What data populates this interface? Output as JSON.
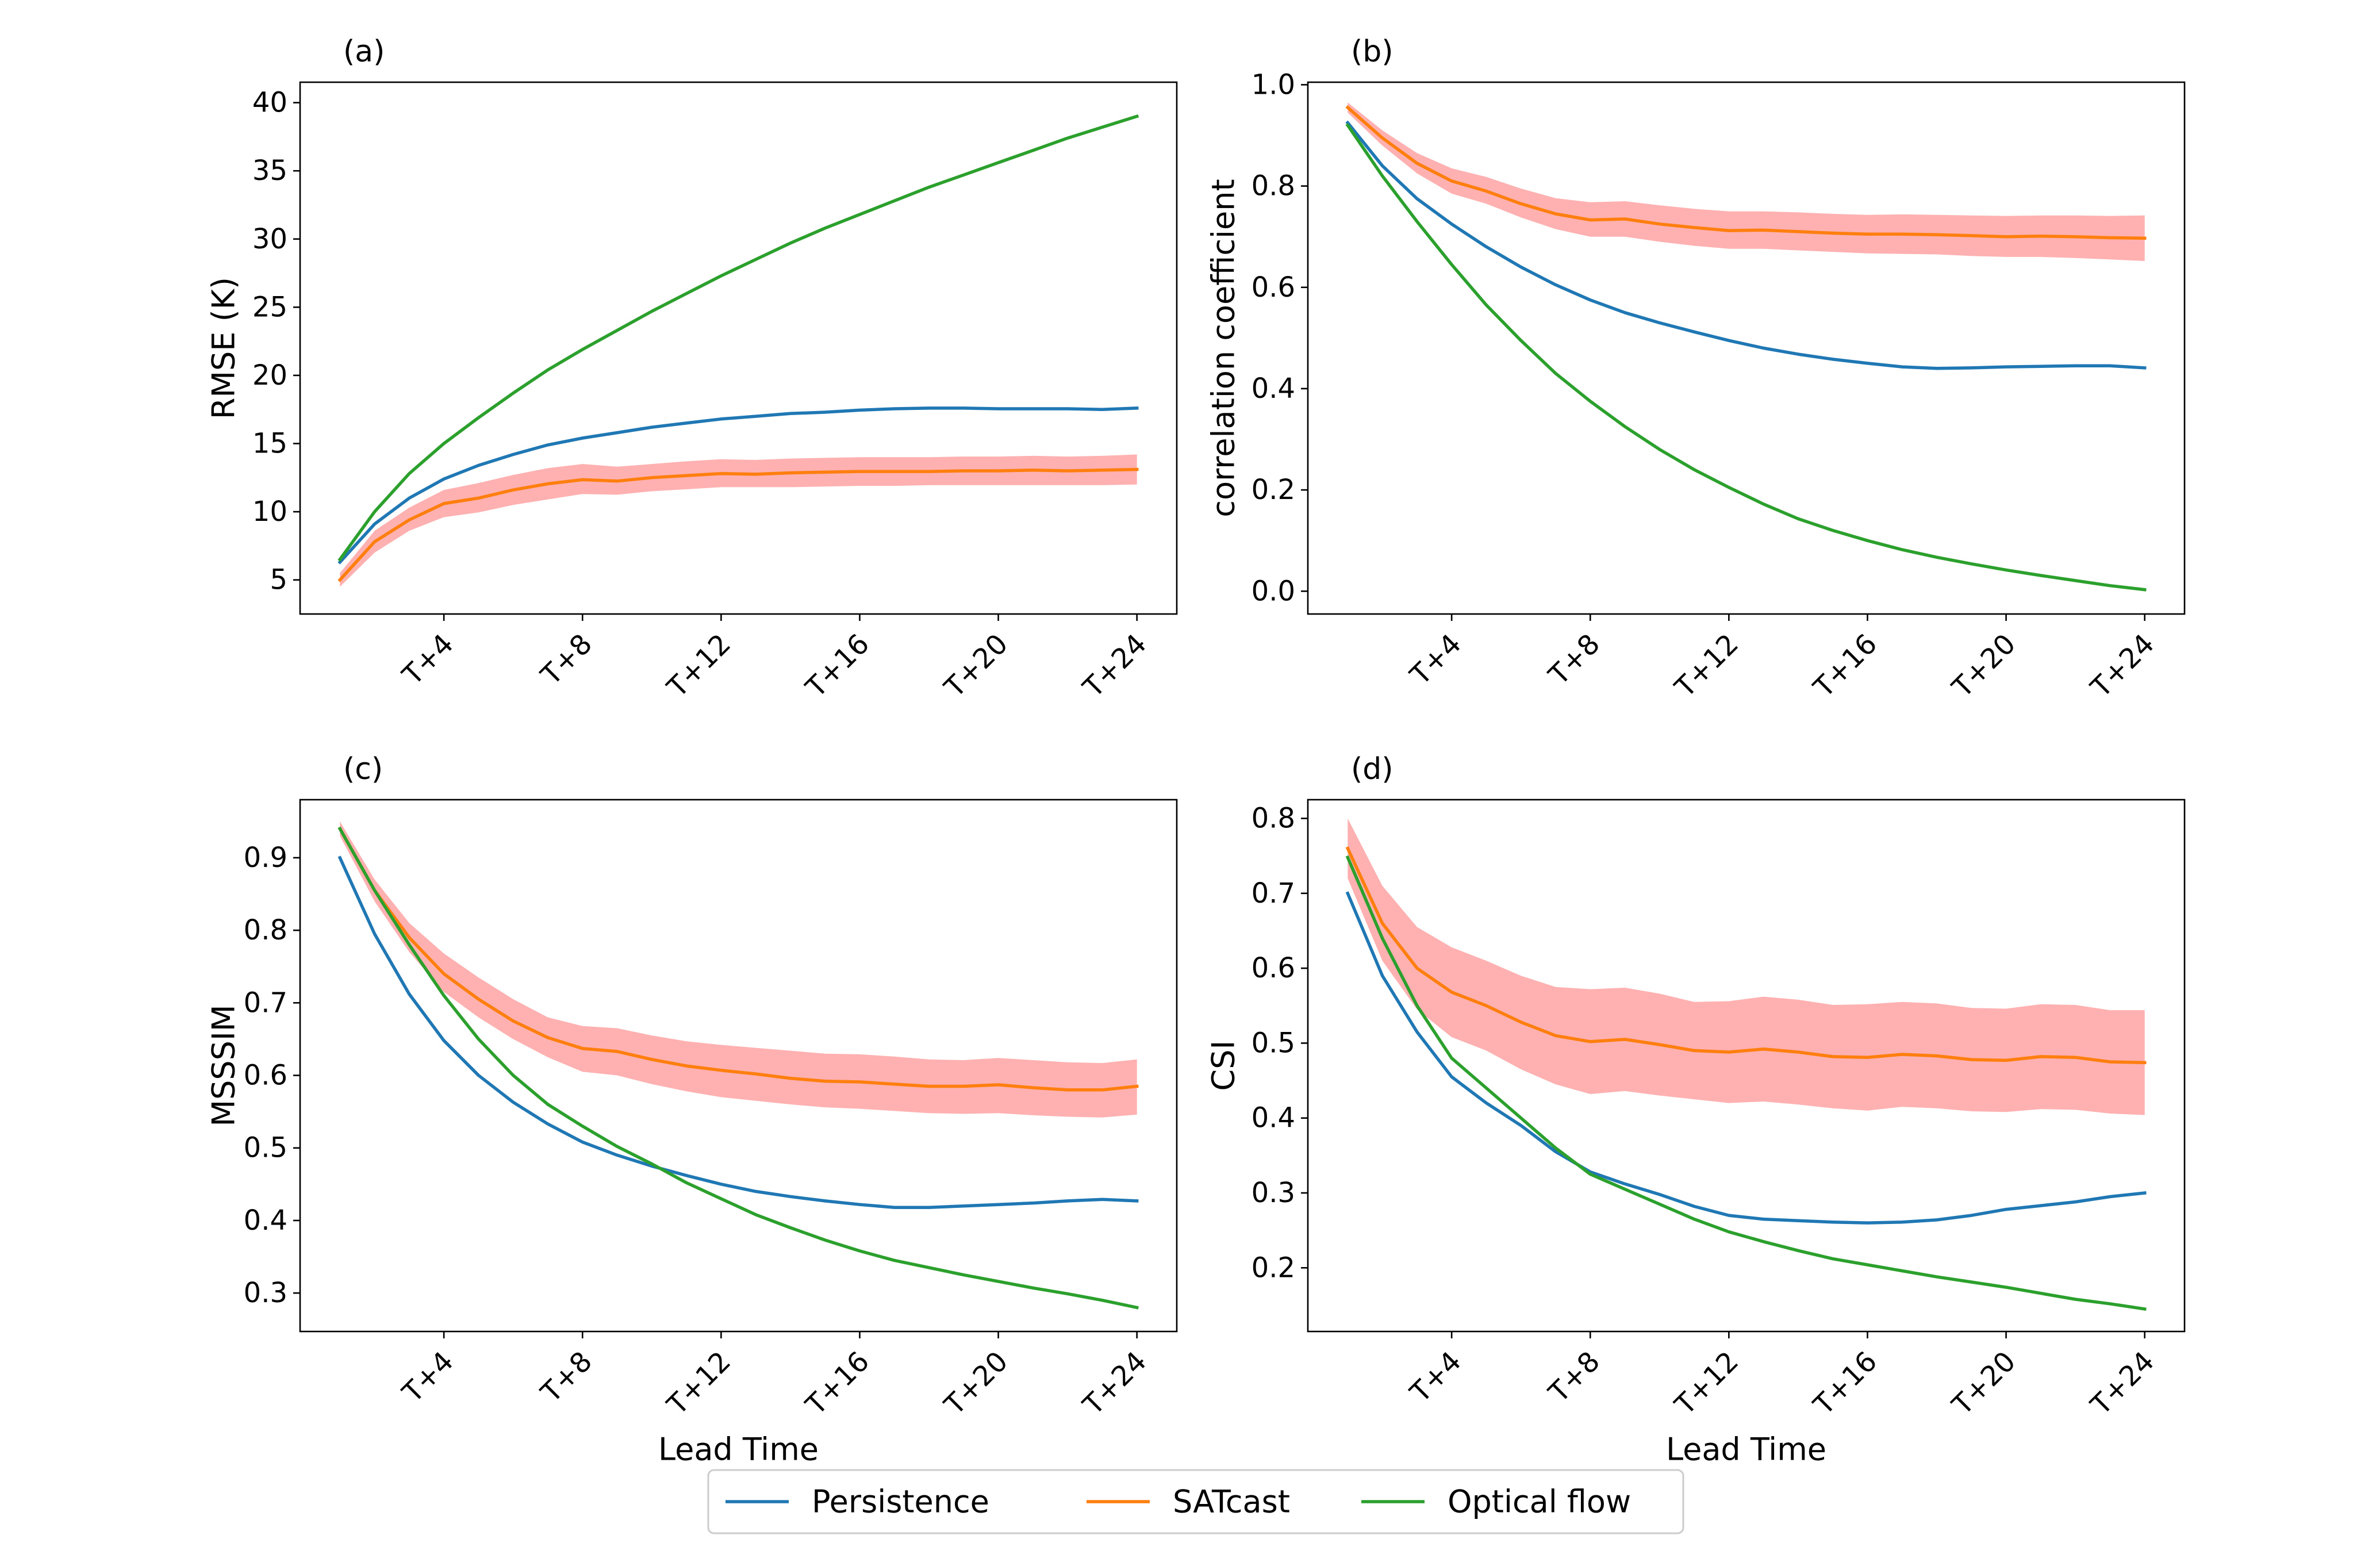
{
  "figure": {
    "colors": {
      "persistence": "#1f77b4",
      "satcast": "#ff7f0e",
      "optical_flow": "#2ca02c",
      "band": "#ffb0b0"
    },
    "legend": {
      "placement": "bottom-center",
      "entries": [
        {
          "key": "persistence",
          "label": "Persistence"
        },
        {
          "key": "satcast",
          "label": "SATcast"
        },
        {
          "key": "optical_flow",
          "label": "Optical flow"
        }
      ]
    }
  },
  "chart_data": [
    {
      "type": "line",
      "panel": "(a)",
      "position": "top-left",
      "title": "",
      "xlabel": "",
      "ylabel": "RMSE (K)",
      "x": [
        1,
        2,
        3,
        4,
        5,
        6,
        7,
        8,
        9,
        10,
        11,
        12,
        13,
        14,
        15,
        16,
        17,
        18,
        19,
        20,
        21,
        22,
        23,
        24
      ],
      "xticks": [
        4,
        8,
        12,
        16,
        20,
        24
      ],
      "xtick_labels": [
        "T+4",
        "T+8",
        "T+12",
        "T+16",
        "T+20",
        "T+24"
      ],
      "xlim": [
        -0.15,
        25.15
      ],
      "ylim": [
        2.5,
        41.5
      ],
      "yticks": [
        5,
        10,
        15,
        20,
        25,
        30,
        35,
        40
      ],
      "ytick_labels": [
        "5",
        "10",
        "15",
        "20",
        "25",
        "30",
        "35",
        "40"
      ],
      "series": [
        {
          "key": "persistence",
          "name": "Persistence",
          "values": [
            6.3,
            9.1,
            11,
            12.4,
            13.4,
            14.2,
            14.9,
            15.4,
            15.8,
            16.2,
            16.5,
            16.8,
            17,
            17.2,
            17.3,
            17.45,
            17.55,
            17.6,
            17.6,
            17.55,
            17.55,
            17.55,
            17.5,
            17.6
          ]
        },
        {
          "key": "satcast",
          "name": "SATcast",
          "values": [
            5,
            7.8,
            9.4,
            10.6,
            11,
            11.6,
            12.05,
            12.35,
            12.25,
            12.5,
            12.65,
            12.8,
            12.75,
            12.85,
            12.9,
            12.95,
            12.95,
            12.95,
            13,
            13,
            13.05,
            13,
            13.05,
            13.1
          ],
          "lower": [
            4.5,
            7,
            8.6,
            9.6,
            9.95,
            10.5,
            10.9,
            11.3,
            11.25,
            11.5,
            11.65,
            11.8,
            11.8,
            11.8,
            11.85,
            11.9,
            11.9,
            11.95,
            11.95,
            11.95,
            11.95,
            11.95,
            11.95,
            12
          ],
          "upper": [
            5.5,
            8.6,
            10.3,
            11.6,
            12.1,
            12.7,
            13.2,
            13.5,
            13.3,
            13.5,
            13.7,
            13.85,
            13.8,
            13.9,
            13.95,
            14,
            14,
            14,
            14.05,
            14.05,
            14.1,
            14.05,
            14.1,
            14.2
          ]
        },
        {
          "key": "optical_flow",
          "name": "Optical flow",
          "values": [
            6.5,
            10,
            12.8,
            15,
            16.9,
            18.7,
            20.4,
            21.9,
            23.3,
            24.7,
            26,
            27.3,
            28.5,
            29.7,
            30.8,
            31.8,
            32.8,
            33.8,
            34.7,
            35.6,
            36.5,
            37.4,
            38.2,
            39
          ]
        }
      ]
    },
    {
      "type": "line",
      "panel": "(b)",
      "position": "top-right",
      "title": "",
      "xlabel": "",
      "ylabel": "correlation coefficient",
      "x": [
        1,
        2,
        3,
        4,
        5,
        6,
        7,
        8,
        9,
        10,
        11,
        12,
        13,
        14,
        15,
        16,
        17,
        18,
        19,
        20,
        21,
        22,
        23,
        24
      ],
      "xticks": [
        4,
        8,
        12,
        16,
        20,
        24
      ],
      "xtick_labels": [
        "T+4",
        "T+8",
        "T+12",
        "T+16",
        "T+20",
        "T+24"
      ],
      "xlim": [
        -0.15,
        25.15
      ],
      "ylim": [
        -0.045,
        1.005
      ],
      "yticks": [
        0,
        0.2,
        0.4,
        0.6,
        0.8,
        1
      ],
      "ytick_labels": [
        "0.0",
        "0.2",
        "0.4",
        "0.6",
        "0.8",
        "1.0"
      ],
      "series": [
        {
          "key": "persistence",
          "name": "Persistence",
          "values": [
            0.925,
            0.84,
            0.775,
            0.725,
            0.68,
            0.64,
            0.605,
            0.575,
            0.55,
            0.53,
            0.512,
            0.495,
            0.48,
            0.468,
            0.458,
            0.45,
            0.443,
            0.44,
            0.441,
            0.443,
            0.444,
            0.445,
            0.445,
            0.441
          ]
        },
        {
          "key": "satcast",
          "name": "SATcast",
          "values": [
            0.955,
            0.895,
            0.845,
            0.81,
            0.79,
            0.765,
            0.745,
            0.733,
            0.735,
            0.725,
            0.718,
            0.712,
            0.713,
            0.71,
            0.707,
            0.705,
            0.705,
            0.704,
            0.702,
            0.7,
            0.701,
            0.7,
            0.698,
            0.697
          ],
          "lower": [
            0.945,
            0.88,
            0.825,
            0.785,
            0.765,
            0.738,
            0.715,
            0.7,
            0.7,
            0.69,
            0.682,
            0.676,
            0.676,
            0.673,
            0.67,
            0.667,
            0.666,
            0.665,
            0.662,
            0.66,
            0.66,
            0.658,
            0.655,
            0.652
          ],
          "upper": [
            0.965,
            0.91,
            0.865,
            0.835,
            0.818,
            0.795,
            0.776,
            0.768,
            0.77,
            0.762,
            0.755,
            0.75,
            0.75,
            0.748,
            0.745,
            0.743,
            0.744,
            0.743,
            0.742,
            0.741,
            0.742,
            0.742,
            0.741,
            0.742
          ]
        },
        {
          "key": "optical_flow",
          "name": "Optical flow",
          "values": [
            0.92,
            0.82,
            0.73,
            0.645,
            0.565,
            0.495,
            0.43,
            0.375,
            0.325,
            0.28,
            0.24,
            0.205,
            0.172,
            0.143,
            0.12,
            0.1,
            0.082,
            0.067,
            0.054,
            0.042,
            0.031,
            0.021,
            0.011,
            0.003
          ]
        }
      ]
    },
    {
      "type": "line",
      "panel": "(c)",
      "position": "bottom-left",
      "title": "",
      "xlabel": "Lead Time",
      "ylabel": "MSSSIM",
      "x": [
        1,
        2,
        3,
        4,
        5,
        6,
        7,
        8,
        9,
        10,
        11,
        12,
        13,
        14,
        15,
        16,
        17,
        18,
        19,
        20,
        21,
        22,
        23,
        24
      ],
      "xticks": [
        4,
        8,
        12,
        16,
        20,
        24
      ],
      "xtick_labels": [
        "T+4",
        "T+8",
        "T+12",
        "T+16",
        "T+20",
        "T+24"
      ],
      "xlim": [
        -0.15,
        25.15
      ],
      "ylim": [
        0.247,
        0.98
      ],
      "yticks": [
        0.3,
        0.4,
        0.5,
        0.6,
        0.7,
        0.8,
        0.9
      ],
      "ytick_labels": [
        "0.3",
        "0.4",
        "0.5",
        "0.6",
        "0.7",
        "0.8",
        "0.9"
      ],
      "series": [
        {
          "key": "persistence",
          "name": "Persistence",
          "values": [
            0.9,
            0.795,
            0.712,
            0.648,
            0.6,
            0.563,
            0.533,
            0.508,
            0.49,
            0.475,
            0.462,
            0.45,
            0.44,
            0.433,
            0.427,
            0.422,
            0.418,
            0.418,
            0.42,
            0.422,
            0.424,
            0.427,
            0.429,
            0.427
          ]
        },
        {
          "key": "satcast",
          "name": "SATcast",
          "values": [
            0.94,
            0.855,
            0.79,
            0.74,
            0.705,
            0.675,
            0.652,
            0.637,
            0.633,
            0.622,
            0.613,
            0.607,
            0.602,
            0.596,
            0.592,
            0.591,
            0.588,
            0.585,
            0.585,
            0.587,
            0.583,
            0.58,
            0.58,
            0.585
          ],
          "lower": [
            0.93,
            0.84,
            0.77,
            0.715,
            0.68,
            0.65,
            0.625,
            0.605,
            0.6,
            0.588,
            0.578,
            0.57,
            0.565,
            0.56,
            0.556,
            0.554,
            0.551,
            0.548,
            0.547,
            0.548,
            0.545,
            0.543,
            0.542,
            0.546
          ],
          "upper": [
            0.95,
            0.87,
            0.81,
            0.768,
            0.735,
            0.705,
            0.68,
            0.668,
            0.665,
            0.655,
            0.647,
            0.642,
            0.638,
            0.634,
            0.63,
            0.629,
            0.626,
            0.622,
            0.621,
            0.624,
            0.621,
            0.618,
            0.617,
            0.622
          ]
        },
        {
          "key": "optical_flow",
          "name": "Optical flow",
          "values": [
            0.94,
            0.855,
            0.78,
            0.71,
            0.65,
            0.6,
            0.56,
            0.53,
            0.502,
            0.478,
            0.452,
            0.43,
            0.408,
            0.39,
            0.373,
            0.358,
            0.345,
            0.335,
            0.325,
            0.316,
            0.307,
            0.299,
            0.29,
            0.28
          ]
        }
      ]
    },
    {
      "type": "line",
      "panel": "(d)",
      "position": "bottom-right",
      "title": "",
      "xlabel": "Lead Time",
      "ylabel": "CSI",
      "x": [
        1,
        2,
        3,
        4,
        5,
        6,
        7,
        8,
        9,
        10,
        11,
        12,
        13,
        14,
        15,
        16,
        17,
        18,
        19,
        20,
        21,
        22,
        23,
        24
      ],
      "xticks": [
        4,
        8,
        12,
        16,
        20,
        24
      ],
      "xtick_labels": [
        "T+4",
        "T+8",
        "T+12",
        "T+16",
        "T+20",
        "T+24"
      ],
      "xlim": [
        -0.15,
        25.15
      ],
      "ylim": [
        0.115,
        0.825
      ],
      "yticks": [
        0.2,
        0.3,
        0.4,
        0.5,
        0.6,
        0.7,
        0.8
      ],
      "ytick_labels": [
        "0.2",
        "0.3",
        "0.4",
        "0.5",
        "0.6",
        "0.7",
        "0.8"
      ],
      "series": [
        {
          "key": "persistence",
          "name": "Persistence",
          "values": [
            0.7,
            0.59,
            0.515,
            0.455,
            0.42,
            0.39,
            0.355,
            0.328,
            0.312,
            0.298,
            0.282,
            0.27,
            0.265,
            0.263,
            0.261,
            0.26,
            0.261,
            0.264,
            0.27,
            0.278,
            0.283,
            0.288,
            0.295,
            0.3
          ]
        },
        {
          "key": "satcast",
          "name": "SATcast",
          "values": [
            0.76,
            0.66,
            0.6,
            0.568,
            0.55,
            0.528,
            0.51,
            0.502,
            0.505,
            0.498,
            0.49,
            0.488,
            0.492,
            0.488,
            0.482,
            0.481,
            0.485,
            0.483,
            0.478,
            0.477,
            0.482,
            0.481,
            0.475,
            0.474
          ],
          "lower": [
            0.72,
            0.61,
            0.545,
            0.508,
            0.49,
            0.465,
            0.445,
            0.432,
            0.436,
            0.43,
            0.425,
            0.42,
            0.422,
            0.418,
            0.413,
            0.41,
            0.415,
            0.413,
            0.409,
            0.408,
            0.412,
            0.411,
            0.406,
            0.404
          ],
          "upper": [
            0.8,
            0.71,
            0.655,
            0.628,
            0.61,
            0.59,
            0.575,
            0.572,
            0.574,
            0.566,
            0.555,
            0.556,
            0.562,
            0.558,
            0.551,
            0.552,
            0.555,
            0.553,
            0.547,
            0.546,
            0.552,
            0.551,
            0.544,
            0.544
          ]
        },
        {
          "key": "optical_flow",
          "name": "Optical flow",
          "values": [
            0.748,
            0.64,
            0.55,
            0.48,
            0.44,
            0.4,
            0.36,
            0.325,
            0.305,
            0.285,
            0.265,
            0.248,
            0.235,
            0.223,
            0.212,
            0.204,
            0.196,
            0.188,
            0.181,
            0.174,
            0.166,
            0.158,
            0.152,
            0.145
          ]
        }
      ]
    }
  ]
}
